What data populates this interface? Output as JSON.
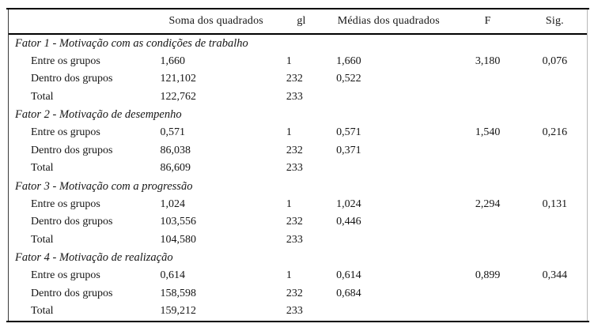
{
  "table": {
    "columns": [
      "",
      "Soma dos quadrados",
      "gl",
      "Médias dos quadrados",
      "F",
      "Sig."
    ],
    "sections": [
      {
        "title": "Fator 1 - Motivação com as condições de trabalho",
        "rows": [
          {
            "label": "Entre os grupos",
            "soma": "1,660",
            "gl": "1",
            "medias": "1,660",
            "f": "3,180",
            "sig": "0,076"
          },
          {
            "label": "Dentro dos grupos",
            "soma": "121,102",
            "gl": "232",
            "medias": "0,522",
            "f": "",
            "sig": ""
          },
          {
            "label": "Total",
            "soma": "122,762",
            "gl": "233",
            "medias": "",
            "f": "",
            "sig": ""
          }
        ]
      },
      {
        "title": "Fator 2 - Motivação de desempenho",
        "rows": [
          {
            "label": "Entre os grupos",
            "soma": "0,571",
            "gl": "1",
            "medias": "0,571",
            "f": "1,540",
            "sig": "0,216"
          },
          {
            "label": "Dentro dos grupos",
            "soma": "86,038",
            "gl": "232",
            "medias": "0,371",
            "f": "",
            "sig": ""
          },
          {
            "label": "Total",
            "soma": "86,609",
            "gl": "233",
            "medias": "",
            "f": "",
            "sig": ""
          }
        ]
      },
      {
        "title": "Fator 3 - Motivação com a progressão",
        "rows": [
          {
            "label": "Entre os grupos",
            "soma": "1,024",
            "gl": "1",
            "medias": "1,024",
            "f": "2,294",
            "sig": "0,131"
          },
          {
            "label": "Dentro dos grupos",
            "soma": "103,556",
            "gl": "232",
            "medias": "0,446",
            "f": "",
            "sig": ""
          },
          {
            "label": "Total",
            "soma": "104,580",
            "gl": "233",
            "medias": "",
            "f": "",
            "sig": ""
          }
        ]
      },
      {
        "title": "Fator 4 - Motivação de realização",
        "rows": [
          {
            "label": "Entre os grupos",
            "soma": "0,614",
            "gl": "1",
            "medias": "0,614",
            "f": "0,899",
            "sig": "0,344"
          },
          {
            "label": "Dentro dos grupos",
            "soma": "158,598",
            "gl": "232",
            "medias": "0,684",
            "f": "",
            "sig": ""
          },
          {
            "label": "Total",
            "soma": "159,212",
            "gl": "233",
            "medias": "",
            "f": "",
            "sig": ""
          }
        ]
      }
    ]
  }
}
